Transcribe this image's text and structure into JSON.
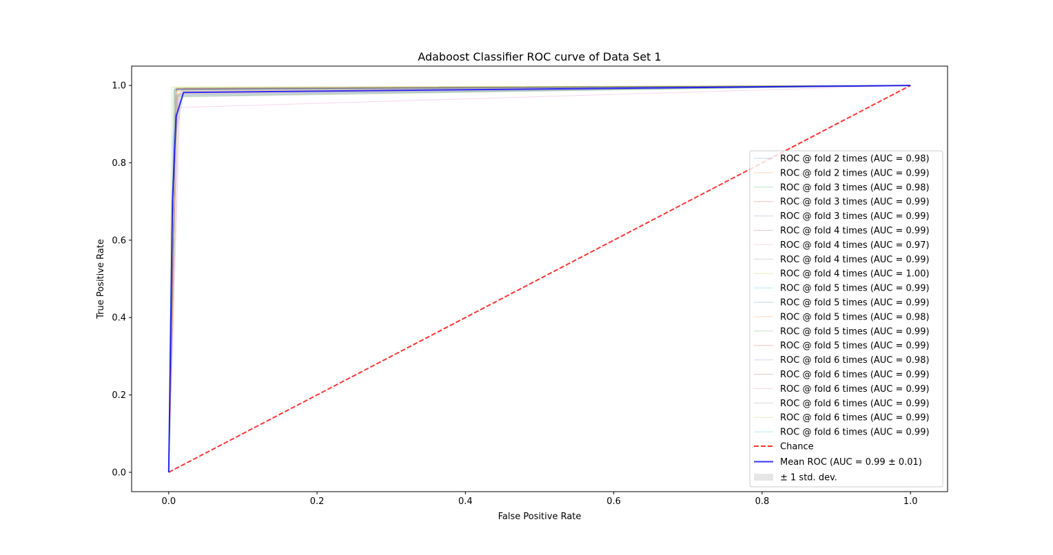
{
  "chart_data": {
    "type": "line",
    "title": "Adaboost Classifier ROC curve of Data Set 1",
    "xlabel": "False Positive Rate",
    "ylabel": "True Positive Rate",
    "xlim": [
      -0.05,
      1.05
    ],
    "ylim": [
      -0.05,
      1.05
    ],
    "xticks": [
      0.0,
      0.2,
      0.4,
      0.6,
      0.8,
      1.0
    ],
    "yticks": [
      0.0,
      0.2,
      0.4,
      0.6,
      0.8,
      1.0
    ],
    "xtick_labels": [
      "0.0",
      "0.2",
      "0.4",
      "0.6",
      "0.8",
      "1.0"
    ],
    "ytick_labels": [
      "0.0",
      "0.2",
      "0.4",
      "0.6",
      "0.8",
      "1.0"
    ],
    "grid": false,
    "legend_position": "center-right",
    "series": [
      {
        "name": "ROC @ fold 2 times (AUC = 0.98)",
        "color": "#1f77b4",
        "x": [
          0,
          0.01,
          1
        ],
        "y": [
          0,
          0.975,
          1
        ]
      },
      {
        "name": "ROC @ fold 2 times (AUC = 0.99)",
        "color": "#ff7f0e",
        "x": [
          0,
          0.008,
          1
        ],
        "y": [
          0,
          0.985,
          1
        ]
      },
      {
        "name": "ROC @ fold 3 times (AUC = 0.98)",
        "color": "#2ca02c",
        "x": [
          0,
          0.012,
          1
        ],
        "y": [
          0,
          0.972,
          1
        ]
      },
      {
        "name": "ROC @ fold 3 times (AUC = 0.99)",
        "color": "#d62728",
        "x": [
          0,
          0.01,
          1
        ],
        "y": [
          0,
          0.99,
          1
        ]
      },
      {
        "name": "ROC @ fold 3 times (AUC = 0.99)",
        "color": "#9467bd",
        "x": [
          0,
          0.012,
          1
        ],
        "y": [
          0,
          0.992,
          1
        ]
      },
      {
        "name": "ROC @ fold 4 times (AUC = 0.99)",
        "color": "#8c564b",
        "x": [
          0,
          0.01,
          1
        ],
        "y": [
          0,
          0.988,
          1
        ]
      },
      {
        "name": "ROC @ fold 4 times (AUC = 0.97)",
        "color": "#e377c2",
        "x": [
          0,
          0.015,
          1
        ],
        "y": [
          0,
          0.943,
          1
        ]
      },
      {
        "name": "ROC @ fold 4 times (AUC = 0.99)",
        "color": "#7f7f7f",
        "x": [
          0,
          0.01,
          1
        ],
        "y": [
          0,
          0.99,
          1
        ]
      },
      {
        "name": "ROC @ fold 4 times (AUC = 1.00)",
        "color": "#bcbd22",
        "x": [
          0,
          0.004,
          1
        ],
        "y": [
          0,
          0.996,
          1
        ]
      },
      {
        "name": "ROC @ fold 5 times (AUC = 0.99)",
        "color": "#17becf",
        "x": [
          0,
          0.008,
          1
        ],
        "y": [
          0,
          0.99,
          1
        ]
      },
      {
        "name": "ROC @ fold 5 times (AUC = 0.99)",
        "color": "#1f77b4",
        "x": [
          0,
          0.01,
          1
        ],
        "y": [
          0,
          0.991,
          1
        ]
      },
      {
        "name": "ROC @ fold 5 times (AUC = 0.98)",
        "color": "#ff7f0e",
        "x": [
          0,
          0.012,
          1
        ],
        "y": [
          0,
          0.98,
          1
        ]
      },
      {
        "name": "ROC @ fold 5 times (AUC = 0.99)",
        "color": "#2ca02c",
        "x": [
          0,
          0.008,
          1
        ],
        "y": [
          0,
          0.993,
          1
        ]
      },
      {
        "name": "ROC @ fold 5 times (AUC = 0.99)",
        "color": "#d62728",
        "x": [
          0,
          0.01,
          1
        ],
        "y": [
          0,
          0.992,
          1
        ]
      },
      {
        "name": "ROC @ fold 6 times (AUC = 0.98)",
        "color": "#9467bd",
        "x": [
          0,
          0.014,
          1
        ],
        "y": [
          0,
          0.978,
          1
        ]
      },
      {
        "name": "ROC @ fold 6 times (AUC = 0.99)",
        "color": "#8c564b",
        "x": [
          0,
          0.01,
          1
        ],
        "y": [
          0,
          0.99,
          1
        ]
      },
      {
        "name": "ROC @ fold 6 times (AUC = 0.99)",
        "color": "#e377c2",
        "x": [
          0,
          0.01,
          1
        ],
        "y": [
          0,
          0.989,
          1
        ]
      },
      {
        "name": "ROC @ fold 6 times (AUC = 0.99)",
        "color": "#7f7f7f",
        "x": [
          0,
          0.008,
          1
        ],
        "y": [
          0,
          0.99,
          1
        ]
      },
      {
        "name": "ROC @ fold 6 times (AUC = 0.99)",
        "color": "#bcbd22",
        "x": [
          0,
          0.01,
          1
        ],
        "y": [
          0,
          0.994,
          1
        ]
      },
      {
        "name": "ROC @ fold 6 times (AUC = 0.99)",
        "color": "#17becf",
        "x": [
          0,
          0.006,
          1
        ],
        "y": [
          0,
          0.988,
          1
        ]
      }
    ],
    "chance": {
      "name": "Chance",
      "color": "#ff0000",
      "x": [
        0,
        1
      ],
      "y": [
        0,
        1
      ]
    },
    "mean_roc": {
      "name": "Mean ROC (AUC = 0.99 ± 0.01)",
      "color": "#0000ff",
      "x": [
        0,
        0.005,
        0.01,
        0.02,
        1.0
      ],
      "y": [
        0,
        0.7,
        0.92,
        0.982,
        1.0
      ]
    },
    "std_band": {
      "name": "± 1 std. dev.",
      "color": "#808080",
      "x": [
        0,
        0.005,
        0.01,
        0.02,
        1.0
      ],
      "upper": [
        0,
        0.85,
        0.97,
        0.995,
        1.0
      ],
      "lower": [
        0,
        0.55,
        0.87,
        0.969,
        1.0
      ]
    }
  }
}
